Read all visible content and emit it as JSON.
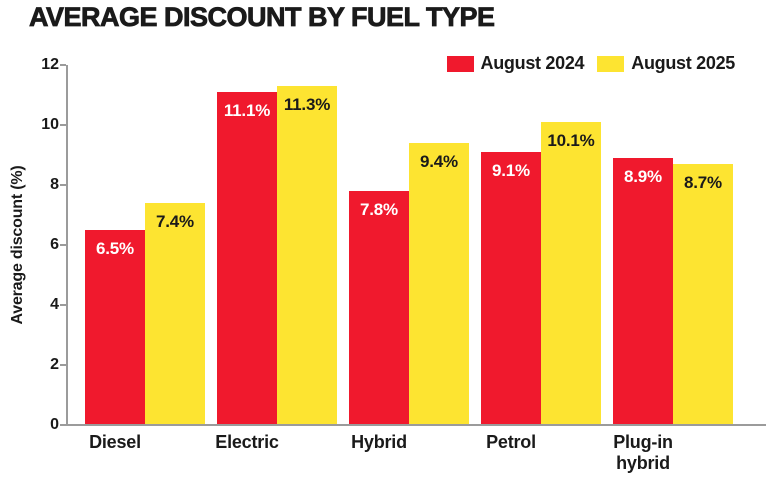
{
  "title": "AVERAGE DISCOUNT BY FUEL TYPE",
  "chart_data": {
    "type": "bar",
    "title": "AVERAGE DISCOUNT BY FUEL TYPE",
    "categories": [
      "Diesel",
      "Electric",
      "Hybrid",
      "Petrol",
      "Plug-in hybrid"
    ],
    "series": [
      {
        "name": "August 2024",
        "color": "#F0192D",
        "label_color": "#FFFFFF",
        "values": [
          6.5,
          11.1,
          7.8,
          9.1,
          8.9
        ]
      },
      {
        "name": "August 2025",
        "color": "#FDE431",
        "label_color": "#1A1A1A",
        "values": [
          7.4,
          11.3,
          9.4,
          10.1,
          8.7
        ]
      }
    ],
    "value_suffix": "%",
    "xlabel": "",
    "ylabel": "Average discount (%)",
    "ylim": [
      0,
      12
    ],
    "yticks": [
      0,
      2,
      4,
      6,
      8,
      10,
      12
    ],
    "grid": false,
    "legend_position": "top-right"
  },
  "colors": {
    "axis": "#9B9B9B",
    "text": "#1A1A1A",
    "background": "#FFFFFF"
  }
}
